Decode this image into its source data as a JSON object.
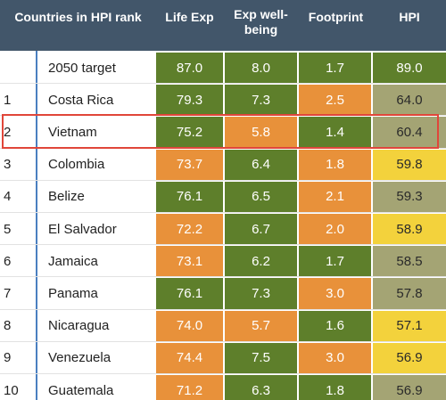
{
  "header": [
    "Countries in HPI rank",
    "Life Exp",
    "Exp well-being",
    "Footprint",
    "HPI"
  ],
  "table": {
    "rows": [
      {
        "country": "2050 target",
        "values": [
          "87.0",
          "8.0",
          "1.7",
          "89.0"
        ],
        "colors": [
          "#5e7f2b",
          "#5e7f2b",
          "#5e7f2b",
          "#5e7f2b"
        ]
      },
      {
        "rank": "1",
        "country": "Costa Rica",
        "values": [
          "79.3",
          "7.3",
          "2.5",
          "64.0"
        ],
        "colors": [
          "#5e7f2b",
          "#5e7f2b",
          "#e8913a",
          "#a4a474"
        ]
      },
      {
        "rank": "2",
        "country": "Vietnam",
        "values": [
          "75.2",
          "5.8",
          "1.4",
          "60.4"
        ],
        "colors": [
          "#5e7f2b",
          "#e8913a",
          "#5e7f2b",
          "#a4a474"
        ]
      },
      {
        "rank": "3",
        "country": "Colombia",
        "values": [
          "73.7",
          "6.4",
          "1.8",
          "59.8"
        ],
        "colors": [
          "#e8913a",
          "#5e7f2b",
          "#e8913a",
          "#f3d23c"
        ]
      },
      {
        "rank": "4",
        "country": "Belize",
        "values": [
          "76.1",
          "6.5",
          "2.1",
          "59.3"
        ],
        "colors": [
          "#5e7f2b",
          "#5e7f2b",
          "#e8913a",
          "#a4a474"
        ]
      },
      {
        "rank": "5",
        "country": "El Salvador",
        "values": [
          "72.2",
          "6.7",
          "2.0",
          "58.9"
        ],
        "colors": [
          "#e8913a",
          "#5e7f2b",
          "#e8913a",
          "#f3d23c"
        ]
      },
      {
        "rank": "6",
        "country": "Jamaica",
        "values": [
          "73.1",
          "6.2",
          "1.7",
          "58.5"
        ],
        "colors": [
          "#e8913a",
          "#5e7f2b",
          "#5e7f2b",
          "#a4a474"
        ]
      },
      {
        "rank": "7",
        "country": "Panama",
        "values": [
          "76.1",
          "7.3",
          "3.0",
          "57.8"
        ],
        "colors": [
          "#5e7f2b",
          "#5e7f2b",
          "#e8913a",
          "#a4a474"
        ]
      },
      {
        "rank": "8",
        "country": "Nicaragua",
        "values": [
          "74.0",
          "5.7",
          "1.6",
          "57.1"
        ],
        "colors": [
          "#e8913a",
          "#e8913a",
          "#5e7f2b",
          "#f3d23c"
        ]
      },
      {
        "rank": "9",
        "country": "Venezuela",
        "values": [
          "74.4",
          "7.5",
          "3.0",
          "56.9"
        ],
        "colors": [
          "#e8913a",
          "#5e7f2b",
          "#e8913a",
          "#f3d23c"
        ]
      },
      {
        "rank": "10",
        "country": "Guatemala",
        "values": [
          "71.2",
          "6.3",
          "1.8",
          "56.9"
        ],
        "colors": [
          "#e8913a",
          "#5e7f2b",
          "#5e7f2b",
          "#a4a474"
        ]
      }
    ]
  }
}
